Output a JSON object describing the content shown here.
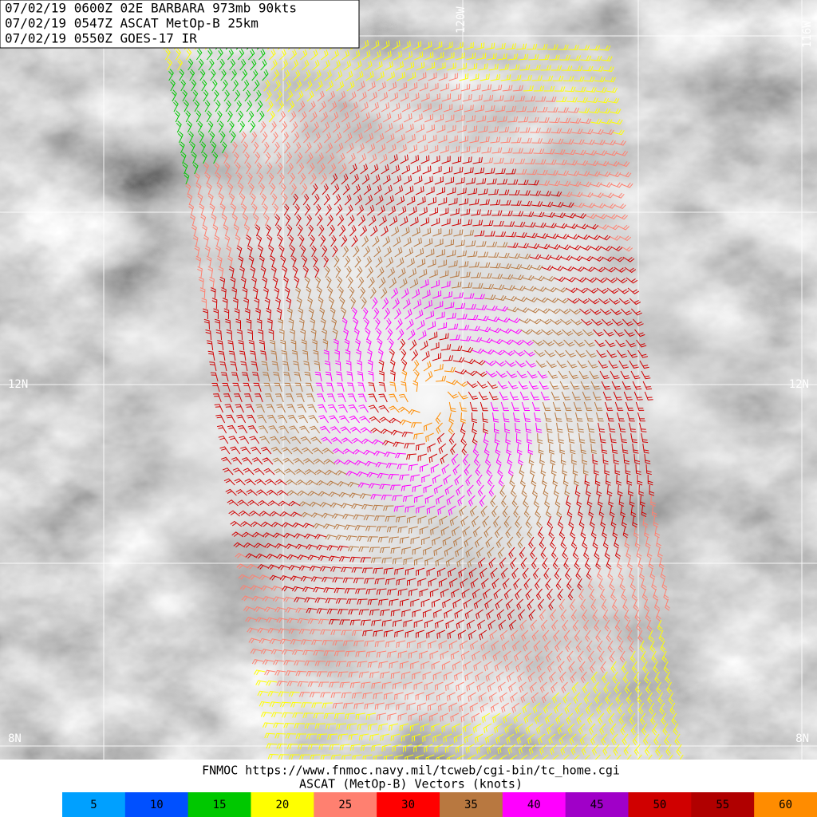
{
  "header": {
    "lines": [
      "07/02/19 0600Z  02E BARBARA 973mb 90kts",
      "07/02/19 0547Z  ASCAT MetOp-B 25km",
      "07/02/19 0550Z  GOES-17 IR"
    ]
  },
  "map": {
    "lat_labels": [
      "12N",
      "8N"
    ],
    "lon_labels": [
      "120W",
      "116W"
    ]
  },
  "footer": {
    "source": "FNMOC https://www.fnmoc.navy.mil/tcweb/cgi-bin/tc_home.cgi",
    "legend_title": "ASCAT (MetOp-B) Vectors (knots)"
  },
  "colorbar": {
    "stops": [
      {
        "value": 5,
        "color": "#00a0ff"
      },
      {
        "value": 10,
        "color": "#0050ff"
      },
      {
        "value": 15,
        "color": "#00c800"
      },
      {
        "value": 20,
        "color": "#ffff00"
      },
      {
        "value": 25,
        "color": "#ff8070"
      },
      {
        "value": 30,
        "color": "#ff0000"
      },
      {
        "value": 35,
        "color": "#b87840"
      },
      {
        "value": 40,
        "color": "#ff00ff"
      },
      {
        "value": 45,
        "color": "#a000c8"
      },
      {
        "value": 50,
        "color": "#d00000"
      },
      {
        "value": 55,
        "color": "#b00000"
      },
      {
        "value": 60,
        "color": "#ff8c00"
      }
    ]
  }
}
